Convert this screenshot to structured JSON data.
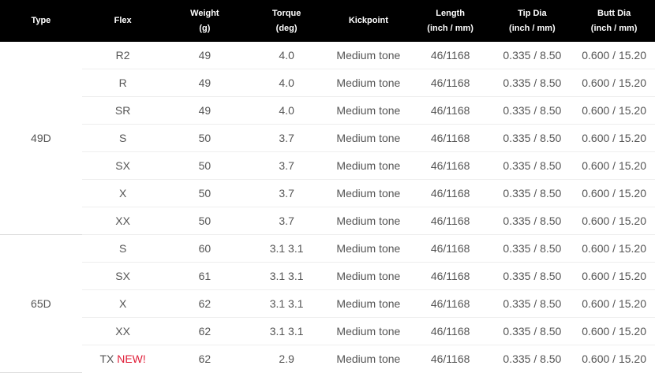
{
  "headers": [
    {
      "l1": "Type",
      "l2": ""
    },
    {
      "l1": "Flex",
      "l2": ""
    },
    {
      "l1": "Weight",
      "l2": "(g)"
    },
    {
      "l1": "Torque",
      "l2": "(deg)"
    },
    {
      "l1": "Kickpoint",
      "l2": ""
    },
    {
      "l1": "Length",
      "l2": "(inch / mm)"
    },
    {
      "l1": "Tip Dia",
      "l2": "(inch / mm)"
    },
    {
      "l1": "Butt Dia",
      "l2": "(inch / mm)"
    }
  ],
  "groups": [
    {
      "type": "49D",
      "rows": [
        {
          "flex": "R2",
          "badge": "",
          "weight": "49",
          "torque": "4.0",
          "kick": "Medium tone",
          "length": "46/1168",
          "tip": "0.335 / 8.50",
          "butt": "0.600 / 15.20"
        },
        {
          "flex": "R",
          "badge": "",
          "weight": "49",
          "torque": "4.0",
          "kick": "Medium tone",
          "length": "46/1168",
          "tip": "0.335 / 8.50",
          "butt": "0.600 / 15.20"
        },
        {
          "flex": "SR",
          "badge": "",
          "weight": "49",
          "torque": "4.0",
          "kick": "Medium tone",
          "length": "46/1168",
          "tip": "0.335 / 8.50",
          "butt": "0.600 / 15.20"
        },
        {
          "flex": "S",
          "badge": "",
          "weight": "50",
          "torque": "3.7",
          "kick": "Medium tone",
          "length": "46/1168",
          "tip": "0.335 / 8.50",
          "butt": "0.600 / 15.20"
        },
        {
          "flex": "SX",
          "badge": "",
          "weight": "50",
          "torque": "3.7",
          "kick": "Medium tone",
          "length": "46/1168",
          "tip": "0.335 / 8.50",
          "butt": "0.600 / 15.20"
        },
        {
          "flex": "X",
          "badge": "",
          "weight": "50",
          "torque": "3.7",
          "kick": "Medium tone",
          "length": "46/1168",
          "tip": "0.335 / 8.50",
          "butt": "0.600 / 15.20"
        },
        {
          "flex": "XX",
          "badge": "",
          "weight": "50",
          "torque": "3.7",
          "kick": "Medium tone",
          "length": "46/1168",
          "tip": "0.335 / 8.50",
          "butt": "0.600 / 15.20"
        }
      ]
    },
    {
      "type": "65D",
      "rows": [
        {
          "flex": "S",
          "badge": "",
          "weight": "60",
          "torque": "3.1 3.1",
          "kick": "Medium tone",
          "length": "46/1168",
          "tip": "0.335 / 8.50",
          "butt": "0.600 / 15.20"
        },
        {
          "flex": "SX",
          "badge": "",
          "weight": "61",
          "torque": "3.1 3.1",
          "kick": "Medium tone",
          "length": "46/1168",
          "tip": "0.335 / 8.50",
          "butt": "0.600 / 15.20"
        },
        {
          "flex": "X",
          "badge": "",
          "weight": "62",
          "torque": "3.1 3.1",
          "kick": "Medium tone",
          "length": "46/1168",
          "tip": "0.335 / 8.50",
          "butt": "0.600 / 15.20"
        },
        {
          "flex": "XX",
          "badge": "",
          "weight": "62",
          "torque": "3.1 3.1",
          "kick": "Medium tone",
          "length": "46/1168",
          "tip": "0.335 / 8.50",
          "butt": "0.600 / 15.20"
        },
        {
          "flex": "TX",
          "badge": "NEW!",
          "weight": "62",
          "torque": "2.9",
          "kick": "Medium tone",
          "length": "46/1168",
          "tip": "0.335 / 8.50",
          "butt": "0.600 / 15.20"
        }
      ]
    }
  ]
}
